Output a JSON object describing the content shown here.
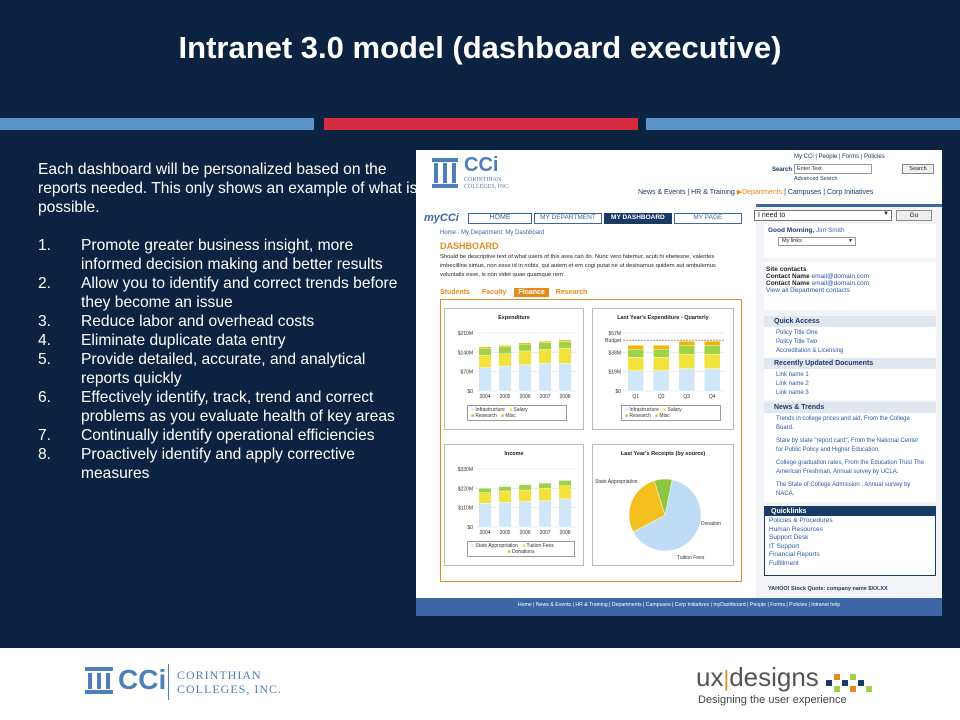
{
  "slide": {
    "title": "Intranet 3.0 model (dashboard executive)",
    "intro": "Each dashboard will be personalized based on the reports needed. This only shows an example of what is possible.",
    "items": [
      {
        "n": "1.",
        "t": "Promote greater business insight, more informed decision making and better results"
      },
      {
        "n": "2.",
        "t": "Allow you to identify and correct trends before they become an issue"
      },
      {
        "n": "3.",
        "t": "Reduce labor and overhead costs"
      },
      {
        "n": "4.",
        "t": "Eliminate duplicate data entry"
      },
      {
        "n": "5.",
        "t": "Provide detailed, accurate, and analytical reports quickly"
      },
      {
        "n": "6.",
        "t": "Effectively identify, track, trend and correct problems as you evaluate health of key areas"
      },
      {
        "n": "7.",
        "t": "Continually identify operational efficiencies"
      },
      {
        "n": "8.",
        "t": "Proactively identify and apply corrective measures"
      }
    ]
  },
  "footer": {
    "cci": "CCi",
    "corinthian1": "CORINTHIAN",
    "corinthian2": "COLLEGES, INC.",
    "ux1": "ux",
    "ux2": "designs",
    "ux_tag": "Designing the user experience"
  },
  "shot": {
    "logo": "CCi",
    "logo_sub1": "CORINTHIAN",
    "logo_sub2": "COLLEGES, INC.",
    "toplinks": "My CCi | People | Forms | Policies",
    "search_label": "Search",
    "search_value": "Enter Text",
    "search_button": "Search",
    "advanced": "Advanced Search",
    "nav_a": "News & Events | HR & Training",
    "nav_b": "Departments",
    "nav_c": "| Campuses | Corp Initiatives",
    "mycci": "myCCi",
    "tabs": [
      "HOME",
      "MY DEPARTMENT",
      "MY DASHBOARD",
      "MY PAGE"
    ],
    "ineed": "I need to",
    "go": "Go",
    "breadcrumb": "Home : My Department: My Dashboard",
    "dash_title": "DASHBOARD",
    "dash_desc": "Should be descriptive text of what users of this area can do. Nunc vero fatemur, acuti hi ebetesne, valentes imbecilline simus, non esse id in nobis, qui autem et em cogi putat ne ut desinamus quidem aut ambulemus voluntatis esse, is non videt quae quamque rem",
    "subtabs": [
      "Students",
      "Faculty",
      "Finance",
      "Research"
    ],
    "greeting": "Good Morning,",
    "user": "Jim Smith",
    "mylinks": "My links",
    "site_contacts": "Site contacts",
    "contact_label": "Contact Name",
    "contact_email": "email@domain.com",
    "view_all": "View all Department contacts",
    "quick_access": "Quick Access",
    "qa_items": [
      "Policy Title One",
      "Policy Title Two",
      "Accreditation & Licensing"
    ],
    "recent": "Recently Updated Documents",
    "recent_items": [
      "Link name 1",
      "Link name 2",
      "Link name 3"
    ],
    "news": "News & Trends",
    "news_items": [
      "Trends in college prices and aid, From the College Board.",
      "State by state \"report card\", From the National Center for Public Policy and Higher Education.",
      "College graduation rates, From the Education Trust The American Freshman, Annual survey by UCLA.",
      "The State of College Admission , Annual survey by NACA."
    ],
    "quicklinks": "Quicklinks",
    "ql_items": [
      "Policies & Procedures",
      "Human Resources",
      "Support Desk",
      "IT Support",
      "Financial Reports",
      "Fulfillment"
    ],
    "stock": "YAHOO! Stock Quote: company name $XX.XX",
    "footer_links": "Home | News & Events | HR & Training | Departments | Campuses | Corp Initiatives | myDashboard | People | Forms | Policies | Intranet help"
  },
  "chart_data": [
    {
      "type": "bar",
      "title": "Expenditure",
      "categories": [
        "2004",
        "2005",
        "2006",
        "2007",
        "2008"
      ],
      "ylim": [
        0,
        210
      ],
      "ticks": [
        "$0",
        "$70M",
        "$140M",
        "$210M"
      ],
      "series": [
        {
          "name": "Infrastructure",
          "values": [
            85,
            90,
            95,
            100,
            100
          ],
          "color": "#cfe6fb"
        },
        {
          "name": "Salary",
          "values": [
            45,
            45,
            50,
            50,
            55
          ],
          "color": "#f2e23b"
        },
        {
          "name": "Research",
          "values": [
            25,
            25,
            25,
            25,
            25
          ],
          "color": "#9fd245"
        },
        {
          "name": "Misc",
          "values": [
            5,
            5,
            5,
            5,
            5
          ],
          "color": "#f4b400"
        }
      ]
    },
    {
      "type": "bar",
      "title": "Last Year's Expenditure - Quarterly",
      "categories": [
        "Q1",
        "Q2",
        "Q3",
        "Q4"
      ],
      "ylim": [
        0,
        57
      ],
      "ticks": [
        "$0",
        "$19M",
        "$38M",
        "$57M"
      ],
      "annotation": "Budget",
      "series": [
        {
          "name": "Infrastructure",
          "values": [
            20,
            20,
            22,
            22
          ],
          "color": "#cfe6fb"
        },
        {
          "name": "Salary",
          "values": [
            13,
            13,
            14,
            14
          ],
          "color": "#f2e23b"
        },
        {
          "name": "Research",
          "values": [
            8,
            8,
            9,
            9
          ],
          "color": "#9fd245"
        },
        {
          "name": "Misc",
          "values": [
            4,
            4,
            4,
            4
          ],
          "color": "#f4b400"
        }
      ]
    },
    {
      "type": "bar",
      "title": "Income",
      "categories": [
        "2004",
        "2005",
        "2006",
        "2007",
        "2008"
      ],
      "ylim": [
        0,
        330
      ],
      "ticks": [
        "$0",
        "$110M",
        "$220M",
        "$330M"
      ],
      "series": [
        {
          "name": "State Appropriation",
          "values": [
            135,
            140,
            145,
            150,
            160
          ],
          "color": "#cfe6fb"
        },
        {
          "name": "Tuition Fees",
          "values": [
            60,
            65,
            65,
            70,
            75
          ],
          "color": "#f2e23b"
        },
        {
          "name": "Donations",
          "values": [
            25,
            25,
            30,
            30,
            30
          ],
          "color": "#9fd245"
        }
      ]
    },
    {
      "type": "pie",
      "title": "Last Year's Receipts (by source)",
      "slices": [
        {
          "name": "State Appropriation",
          "value": 64,
          "color": "#bfdcf7"
        },
        {
          "name": "Tuition Fees",
          "value": 28,
          "color": "#f4c01e"
        },
        {
          "name": "Donation",
          "value": 8,
          "color": "#8ec63f"
        }
      ]
    }
  ]
}
